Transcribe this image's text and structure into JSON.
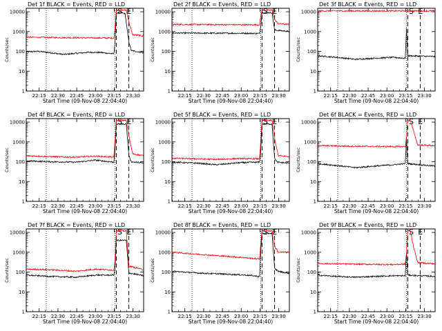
{
  "colors": {
    "events": "#000000",
    "lld": "#ff0000",
    "background": "#ffffff"
  },
  "chart_data": [
    {
      "type": "line",
      "title": "Det 1f BLACK = Events, RED = LLD",
      "xlabel": "Start Time (09-Nov-08 22:04:40)",
      "ylabel": "Counts/sec",
      "yscale": "log",
      "ylim": [
        1,
        15000
      ],
      "xlim": [
        "22:04:40",
        "23:38:30"
      ],
      "xticks": [
        "22:15",
        "22:30",
        "22:45",
        "23:00",
        "23:15",
        "23:30"
      ],
      "yticks": [
        "1",
        "10",
        "100",
        "1000",
        "10000"
      ],
      "markers": [
        "S",
        "E"
      ],
      "grid": false,
      "legend": "title",
      "series": [
        {
          "name": "BLACK = Events",
          "values": [
            [
              0,
              95
            ],
            [
              10,
              100
            ],
            [
              20,
              85
            ],
            [
              30,
              70
            ],
            [
              40,
              80
            ],
            [
              50,
              90
            ],
            [
              60,
              88
            ],
            [
              70,
              75
            ],
            [
              71,
              300
            ],
            [
              72,
              8000
            ],
            [
              73,
              9000
            ],
            [
              76,
              9000
            ],
            [
              79,
              8000
            ],
            [
              82,
              300
            ],
            [
              84,
              110
            ],
            [
              94,
              85
            ]
          ]
        },
        {
          "name": "RED = LLD",
          "values": [
            [
              0,
              520
            ],
            [
              20,
              500
            ],
            [
              50,
              480
            ],
            [
              70,
              470
            ],
            [
              71,
              1500
            ],
            [
              72,
              12000
            ],
            [
              80,
              12000
            ],
            [
              82,
              3000
            ],
            [
              85,
              700
            ],
            [
              94,
              600
            ]
          ]
        }
      ]
    },
    {
      "type": "line",
      "title": "Det 2f BLACK = Events, RED = LLD",
      "xlabel": "Start Time (09-Nov-08 22:04:40)",
      "ylabel": "Counts/sec",
      "yscale": "log",
      "ylim": [
        1,
        15000
      ],
      "xlim": [
        "22:04:40",
        "23:38:30"
      ],
      "xticks": [
        "22:15",
        "22:30",
        "22:45",
        "23:00",
        "23:15",
        "23:30"
      ],
      "yticks": [
        "1",
        "10",
        "100",
        "1000",
        "10000"
      ],
      "markers": [
        "S",
        "E"
      ],
      "grid": false,
      "legend": "title",
      "series": [
        {
          "name": "BLACK = Events",
          "values": [
            [
              0,
              850
            ],
            [
              30,
              830
            ],
            [
              60,
              820
            ],
            [
              70,
              800
            ],
            [
              71,
              2000
            ],
            [
              72,
              9000
            ],
            [
              80,
              9000
            ],
            [
              82,
              1200
            ],
            [
              94,
              1000
            ]
          ]
        },
        {
          "name": "RED = LLD",
          "values": [
            [
              0,
              2300
            ],
            [
              30,
              2250
            ],
            [
              60,
              2200
            ],
            [
              70,
              2200
            ],
            [
              71,
              6000
            ],
            [
              72,
              12000
            ],
            [
              80,
              12000
            ],
            [
              82,
              4000
            ],
            [
              85,
              2500
            ],
            [
              94,
              2300
            ]
          ]
        }
      ]
    },
    {
      "type": "line",
      "title": "Det 3f BLACK = Events, RED = LLD",
      "xlabel": "Start Time (09-Nov-08 22:04:40)",
      "ylabel": "Counts/sec",
      "yscale": "log",
      "ylim": [
        1,
        15000
      ],
      "xlim": [
        "22:04:40",
        "23:38:30"
      ],
      "xticks": [
        "22:15",
        "22:30",
        "22:45",
        "23:00",
        "23:15",
        "23:30"
      ],
      "yticks": [
        "1",
        "10",
        "100",
        "1000",
        "10000"
      ],
      "markers": [
        "S",
        "E"
      ],
      "grid": false,
      "legend": "title",
      "series": [
        {
          "name": "BLACK = Events",
          "values": [
            [
              0,
              60
            ],
            [
              15,
              50
            ],
            [
              30,
              40
            ],
            [
              45,
              45
            ],
            [
              60,
              50
            ],
            [
              70,
              45
            ],
            [
              71,
              1500
            ],
            [
              72,
              60
            ],
            [
              94,
              55
            ]
          ]
        },
        {
          "name": "RED = LLD",
          "values": [
            [
              0,
              11000
            ],
            [
              30,
              11000
            ],
            [
              60,
              11000
            ],
            [
              70,
              11000
            ],
            [
              94,
              11000
            ]
          ]
        }
      ]
    },
    {
      "type": "line",
      "title": "Det 4f BLACK = Events, RED = LLD",
      "xlabel": "Start Time (09-Nov-08 22:04:40)",
      "ylabel": "Counts/sec",
      "yscale": "log",
      "ylim": [
        1,
        15000
      ],
      "xlim": [
        "22:04:40",
        "23:38:30"
      ],
      "xticks": [
        "22:15",
        "22:30",
        "22:45",
        "23:00",
        "23:15",
        "23:30"
      ],
      "yticks": [
        "1",
        "10",
        "100",
        "1000",
        "10000"
      ],
      "markers": [
        "S",
        "E"
      ],
      "grid": false,
      "legend": "title",
      "series": [
        {
          "name": "BLACK = Events",
          "values": [
            [
              0,
              110
            ],
            [
              20,
              100
            ],
            [
              40,
              95
            ],
            [
              55,
              120
            ],
            [
              70,
              95
            ],
            [
              71,
              400
            ],
            [
              72,
              8000
            ],
            [
              80,
              8000
            ],
            [
              82,
              200
            ],
            [
              84,
              100
            ],
            [
              94,
              85
            ]
          ]
        },
        {
          "name": "RED = LLD",
          "values": [
            [
              0,
              200
            ],
            [
              20,
              180
            ],
            [
              40,
              170
            ],
            [
              55,
              190
            ],
            [
              70,
              170
            ],
            [
              71,
              1200
            ],
            [
              72,
              12000
            ],
            [
              80,
              12000
            ],
            [
              82,
              2000
            ],
            [
              85,
              250
            ],
            [
              94,
              200
            ]
          ]
        }
      ]
    },
    {
      "type": "line",
      "title": "Det 5f BLACK = Events, RED = LLD",
      "xlabel": "Start Time (09-Nov-08 22:04:40)",
      "ylabel": "Counts/sec",
      "yscale": "log",
      "ylim": [
        1,
        15000
      ],
      "xlim": [
        "22:04:40",
        "23:38:30"
      ],
      "xticks": [
        "22:15",
        "22:30",
        "22:45",
        "23:00",
        "23:15",
        "23:30"
      ],
      "yticks": [
        "1",
        "10",
        "100",
        "1000",
        "10000"
      ],
      "markers": [
        "S",
        "E"
      ],
      "grid": false,
      "legend": "title",
      "series": [
        {
          "name": "BLACK = Events",
          "values": [
            [
              0,
              95
            ],
            [
              20,
              85
            ],
            [
              35,
              70
            ],
            [
              55,
              90
            ],
            [
              70,
              95
            ],
            [
              71,
              400
            ],
            [
              72,
              8000
            ],
            [
              80,
              8000
            ],
            [
              82,
              150
            ],
            [
              84,
              95
            ],
            [
              94,
              85
            ]
          ]
        },
        {
          "name": "RED = LLD",
          "values": [
            [
              0,
              150
            ],
            [
              20,
              140
            ],
            [
              35,
              130
            ],
            [
              55,
              145
            ],
            [
              70,
              140
            ],
            [
              71,
              1200
            ],
            [
              72,
              12000
            ],
            [
              80,
              12000
            ],
            [
              82,
              1500
            ],
            [
              85,
              200
            ],
            [
              94,
              180
            ]
          ]
        }
      ]
    },
    {
      "type": "line",
      "title": "Det 6f BLACK = Events, RED = LLD",
      "xlabel": "Start Time (09-Nov-08 22:04:40)",
      "ylabel": "Counts/sec",
      "yscale": "log",
      "ylim": [
        1,
        15000
      ],
      "xlim": [
        "22:04:40",
        "23:38:30"
      ],
      "xticks": [
        "22:15",
        "22:30",
        "22:45",
        "23:00",
        "23:15",
        "23:30"
      ],
      "yticks": [
        "1",
        "10",
        "100",
        "1000",
        "10000"
      ],
      "markers": [
        "S",
        "E"
      ],
      "grid": false,
      "legend": "title",
      "series": [
        {
          "name": "BLACK = Events",
          "values": [
            [
              0,
              80
            ],
            [
              15,
              65
            ],
            [
              30,
              50
            ],
            [
              45,
              60
            ],
            [
              60,
              70
            ],
            [
              70,
              80
            ],
            [
              71,
              1500
            ],
            [
              72,
              80
            ],
            [
              94,
              60
            ]
          ]
        },
        {
          "name": "RED = LLD",
          "values": [
            [
              0,
              650
            ],
            [
              30,
              600
            ],
            [
              60,
              580
            ],
            [
              70,
              580
            ],
            [
              71,
              2000
            ],
            [
              72,
              12000
            ],
            [
              74,
              12000
            ],
            [
              77,
              3000
            ],
            [
              80,
              700
            ],
            [
              94,
              650
            ]
          ]
        }
      ]
    },
    {
      "type": "line",
      "title": "Det 7f BLACK = Events, RED = LLD",
      "xlabel": "Start Time (09-Nov-08 22:04:40)",
      "ylabel": "Counts/sec",
      "yscale": "log",
      "ylim": [
        1,
        15000
      ],
      "xlim": [
        "22:04:40",
        "23:38:30"
      ],
      "xticks": [
        "22:15",
        "22:30",
        "22:45",
        "23:00",
        "23:15",
        "23:30"
      ],
      "yticks": [
        "1",
        "10",
        "100",
        "1000",
        "10000"
      ],
      "markers": [
        "S",
        "E"
      ],
      "grid": false,
      "legend": "title",
      "series": [
        {
          "name": "BLACK = Events",
          "values": [
            [
              0,
              70
            ],
            [
              20,
              60
            ],
            [
              40,
              55
            ],
            [
              55,
              70
            ],
            [
              70,
              70
            ],
            [
              71,
              150
            ],
            [
              72,
              4000
            ],
            [
              80,
              4000
            ],
            [
              82,
              90
            ],
            [
              94,
              65
            ]
          ]
        },
        {
          "name": "RED = LLD",
          "values": [
            [
              0,
              140
            ],
            [
              20,
              130
            ],
            [
              40,
              110
            ],
            [
              55,
              140
            ],
            [
              70,
              125
            ],
            [
              71,
              400
            ],
            [
              72,
              12000
            ],
            [
              80,
              12000
            ],
            [
              82,
              200
            ],
            [
              94,
              130
            ]
          ]
        }
      ]
    },
    {
      "type": "line",
      "title": "Det 8f BLACK = Events, RED = LLD",
      "xlabel": "Start Time (09-Nov-08 22:04:40)",
      "ylabel": "Counts/sec",
      "yscale": "log",
      "ylim": [
        1,
        15000
      ],
      "xlim": [
        "22:04:40",
        "23:38:30"
      ],
      "xticks": [
        "22:15",
        "22:30",
        "22:45",
        "23:00",
        "23:15",
        "23:30"
      ],
      "yticks": [
        "1",
        "10",
        "100",
        "1000",
        "10000"
      ],
      "markers": [
        "S",
        "E"
      ],
      "grid": false,
      "legend": "title",
      "series": [
        {
          "name": "BLACK = Events",
          "values": [
            [
              0,
              110
            ],
            [
              20,
              90
            ],
            [
              40,
              80
            ],
            [
              60,
              70
            ],
            [
              70,
              60
            ],
            [
              71,
              1200
            ],
            [
              72,
              9000
            ],
            [
              80,
              9000
            ],
            [
              82,
              150
            ],
            [
              85,
              110
            ],
            [
              94,
              85
            ]
          ]
        },
        {
          "name": "RED = LLD",
          "values": [
            [
              0,
              1000
            ],
            [
              20,
              800
            ],
            [
              40,
              650
            ],
            [
              60,
              520
            ],
            [
              70,
              450
            ],
            [
              71,
              3000
            ],
            [
              72,
              12000
            ],
            [
              80,
              12000
            ],
            [
              82,
              2000
            ],
            [
              85,
              1000
            ],
            [
              94,
              1000
            ]
          ]
        }
      ]
    },
    {
      "type": "line",
      "title": "Det 9f BLACK = Events, RED = LLD",
      "xlabel": "Start Time (09-Nov-08 22:04:40)",
      "ylabel": "Counts/sec",
      "yscale": "log",
      "ylim": [
        1,
        15000
      ],
      "xlim": [
        "22:04:40",
        "23:38:30"
      ],
      "xticks": [
        "22:15",
        "22:30",
        "22:45",
        "23:00",
        "23:15",
        "23:30"
      ],
      "yticks": [
        "1",
        "10",
        "100",
        "1000",
        "10000"
      ],
      "markers": [
        "S",
        "E"
      ],
      "grid": false,
      "legend": "title",
      "series": [
        {
          "name": "BLACK = Events",
          "values": [
            [
              0,
              70
            ],
            [
              15,
              60
            ],
            [
              30,
              55
            ],
            [
              45,
              60
            ],
            [
              60,
              65
            ],
            [
              70,
              65
            ],
            [
              71,
              1000
            ],
            [
              72,
              70
            ],
            [
              94,
              60
            ]
          ]
        },
        {
          "name": "RED = LLD",
          "values": [
            [
              0,
              270
            ],
            [
              30,
              250
            ],
            [
              60,
              240
            ],
            [
              70,
              250
            ],
            [
              71,
              1000
            ],
            [
              72,
              12000
            ],
            [
              74,
              12000
            ],
            [
              77,
              1500
            ],
            [
              80,
              300
            ],
            [
              94,
              260
            ]
          ]
        }
      ]
    }
  ]
}
